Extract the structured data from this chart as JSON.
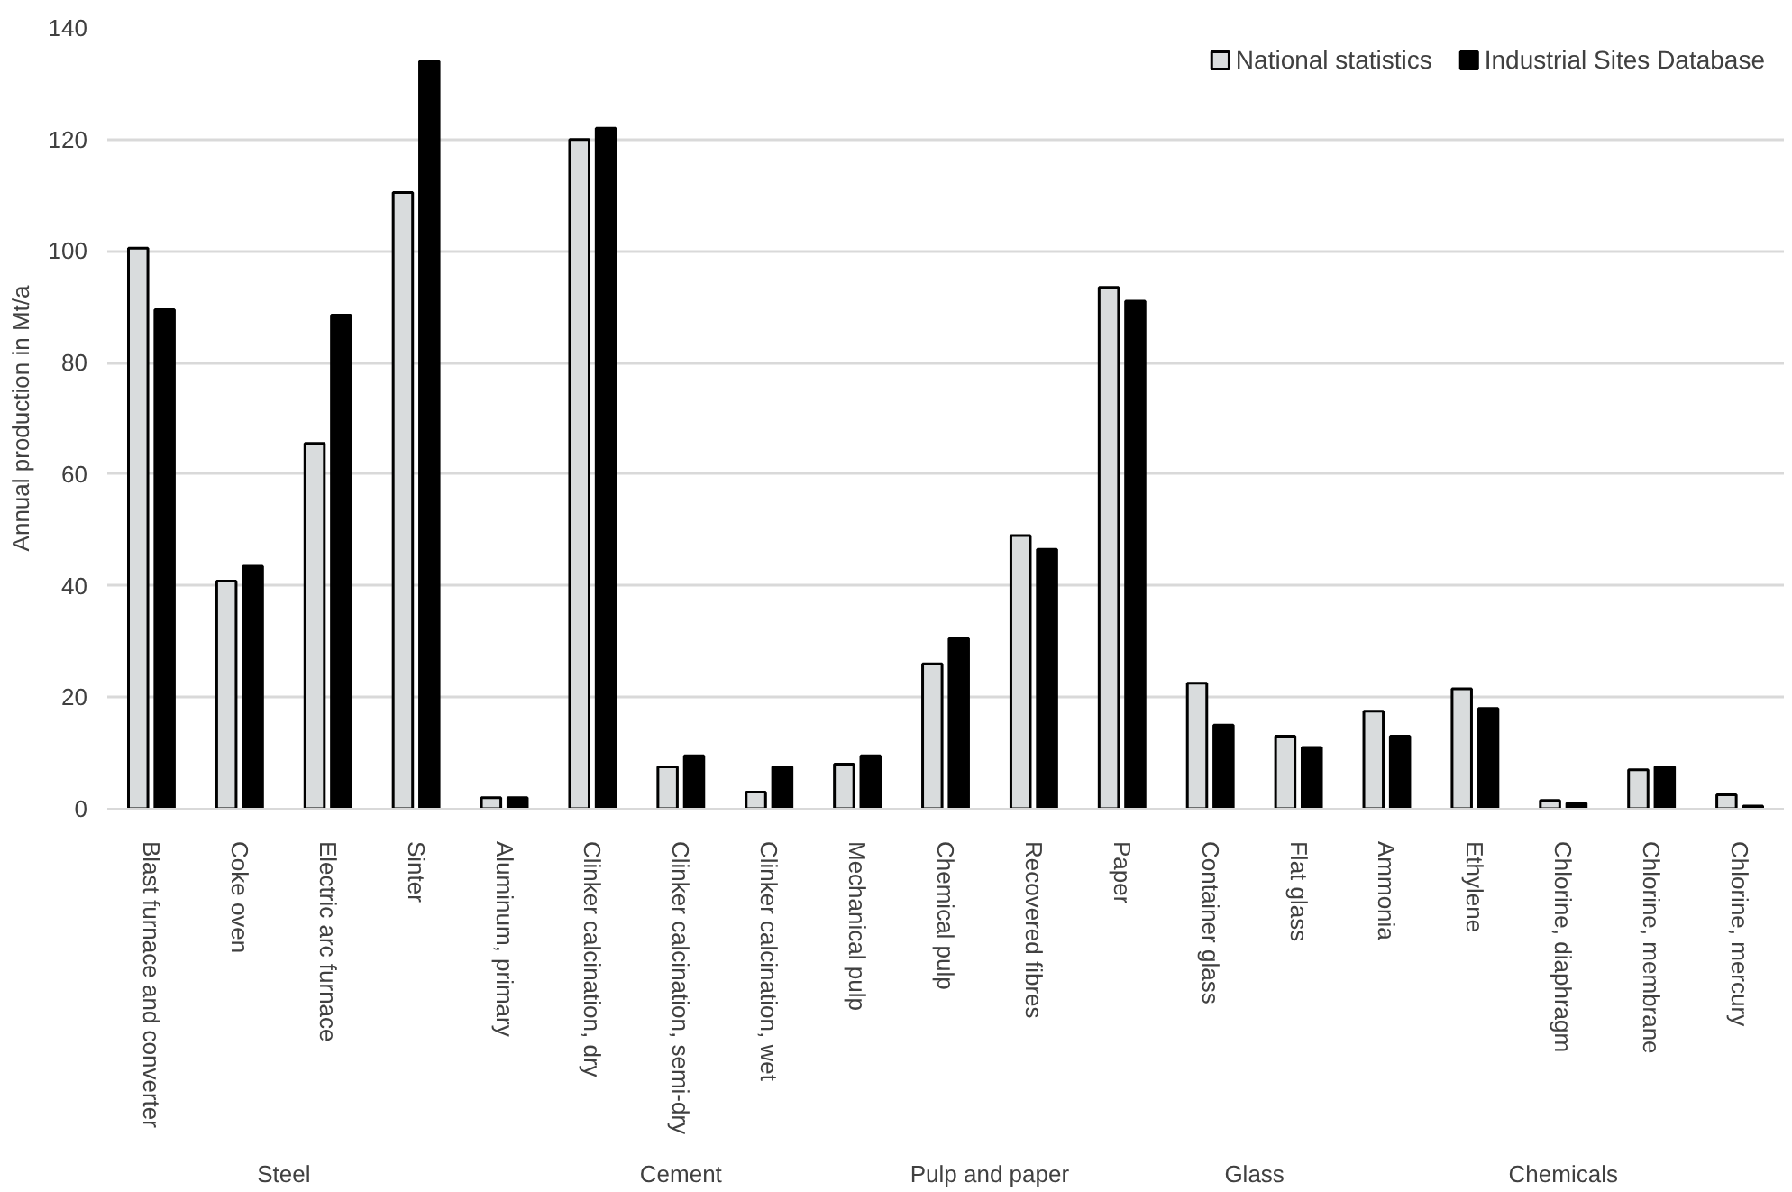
{
  "chart_data": {
    "type": "bar",
    "ylabel": "Annual production in Mt/a",
    "categories": [
      "Blast furnace and converter",
      "Coke oven",
      "Electric arc furnace",
      "Sinter",
      "Aluminum, primary",
      "Clinker calcination, dry",
      "Clinker calcination, semi-dry",
      "Clinker calcination, wet",
      "Mechanical pulp",
      "Chemical pulp",
      "Recovered fibres",
      "Paper",
      "Container glass",
      "Flat glass",
      "Ammonia",
      "Ethylene",
      "Chlorine, diaphragm",
      "Chlorine, membrane",
      "Chlorine, mercury"
    ],
    "series": [
      {
        "name": "National statistics",
        "color": "#d9dcdd",
        "values": [
          100.5,
          40.8,
          65.5,
          110.5,
          2,
          120,
          7.5,
          3,
          8,
          26,
          49,
          93.5,
          22.5,
          13,
          17.5,
          21.5,
          1.5,
          7,
          2.5
        ]
      },
      {
        "name": "Industrial Sites Database",
        "color": "#000000",
        "values": [
          89.5,
          43.5,
          88.5,
          134,
          2,
          122,
          9.5,
          7.5,
          9.5,
          30.5,
          46.5,
          91,
          15,
          11,
          13,
          18,
          1,
          7.5,
          0.5
        ]
      }
    ],
    "annotations": [
      "Steel",
      "Cement",
      "Pulp and paper",
      "Glass",
      "Chemicals"
    ],
    "ylim": [
      0,
      140
    ],
    "yticks": [
      0,
      20,
      40,
      60,
      80,
      100,
      120,
      140
    ],
    "grid": "y",
    "legend": "top right"
  }
}
